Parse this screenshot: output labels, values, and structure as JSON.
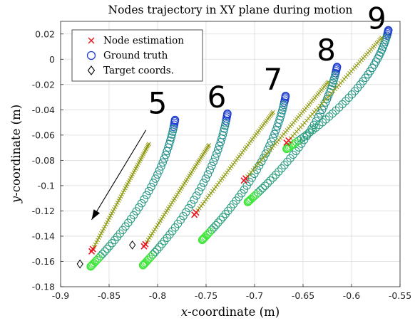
{
  "chart_data": {
    "type": "scatter",
    "title": "Nodes trajectory in XY plane during motion",
    "xlabel_var": "x",
    "xlabel_rest": "-coordinate (m)",
    "ylabel_var": "y",
    "ylabel_rest": "-coordinate (m)",
    "xlim": [
      -0.9,
      -0.55
    ],
    "ylim": [
      -0.18,
      0.03
    ],
    "x_ticks": [
      -0.9,
      -0.85,
      -0.8,
      -0.75,
      -0.7,
      -0.65,
      -0.6,
      -0.55
    ],
    "x_tick_labels": [
      "-0.9",
      "-0.85",
      "-0.8",
      "-0.75",
      "-0.7",
      "-0.65",
      "-0.6",
      "-0.55"
    ],
    "y_ticks": [
      -0.18,
      -0.16,
      -0.14,
      -0.12,
      -0.1,
      -0.08,
      -0.06,
      -0.04,
      -0.02,
      0,
      0.02
    ],
    "y_tick_labels": [
      "-0.18",
      "-0.16",
      "-0.14",
      "-0.12",
      "-0.1",
      "-0.08",
      "-0.06",
      "-0.04",
      "-0.02",
      "0",
      "0.02"
    ],
    "grid": true,
    "legend": {
      "placement": "top-left",
      "entries": [
        {
          "label": "Node estimation",
          "marker": "x",
          "color": "#e8141e"
        },
        {
          "label": "Ground truth",
          "marker": "circle",
          "color": "#1f3fcf"
        },
        {
          "label": "Target coords.",
          "marker": "diamond",
          "color": "#000000"
        }
      ]
    },
    "colors": {
      "estimation_start": "#e8141e",
      "estimation_trail": "#8f9a10",
      "truth_start": "#1f3fcf",
      "truth_trail": "#1f8a8f",
      "truth_end": "#3ee63a",
      "target": "#000000"
    },
    "nodes": [
      {
        "label": "5",
        "truth_start": [
          -0.782,
          -0.048
        ],
        "truth_end": [
          -0.869,
          -0.164
        ],
        "truth_bend_x": -0.795,
        "est_start": [
          -0.809,
          -0.067
        ],
        "est_end": [
          -0.868,
          -0.152
        ],
        "target": [
          -0.88,
          -0.162
        ]
      },
      {
        "label": "6",
        "truth_start": [
          -0.728,
          -0.043
        ],
        "truth_end": [
          -0.815,
          -0.163
        ],
        "truth_bend_x": -0.741,
        "est_start": [
          -0.747,
          -0.068
        ],
        "est_end": [
          -0.814,
          -0.148
        ],
        "target": [
          -0.826,
          -0.147
        ]
      },
      {
        "label": "7",
        "truth_start": [
          -0.668,
          -0.029
        ],
        "truth_end": [
          -0.754,
          -0.143
        ],
        "truth_bend_x": -0.682,
        "est_start": [
          -0.681,
          -0.042
        ],
        "est_end": [
          -0.762,
          -0.123
        ],
        "target": null
      },
      {
        "label": "8",
        "truth_start": [
          -0.615,
          -0.006
        ],
        "truth_end": [
          -0.707,
          -0.113
        ],
        "truth_bend_x": -0.629,
        "est_start": [
          -0.624,
          -0.018
        ],
        "est_end": [
          -0.711,
          -0.096
        ],
        "target": null
      },
      {
        "label": "9",
        "truth_start": [
          -0.562,
          0.023
        ],
        "truth_end": [
          -0.667,
          -0.071
        ],
        "truth_bend_x": -0.576,
        "est_start": [
          -0.569,
          0.017
        ],
        "est_end": [
          -0.667,
          -0.066
        ],
        "target": null
      }
    ],
    "annotations": {
      "arrow_from": [
        -0.812,
        -0.056
      ],
      "arrow_to": [
        -0.868,
        -0.127
      ]
    }
  }
}
